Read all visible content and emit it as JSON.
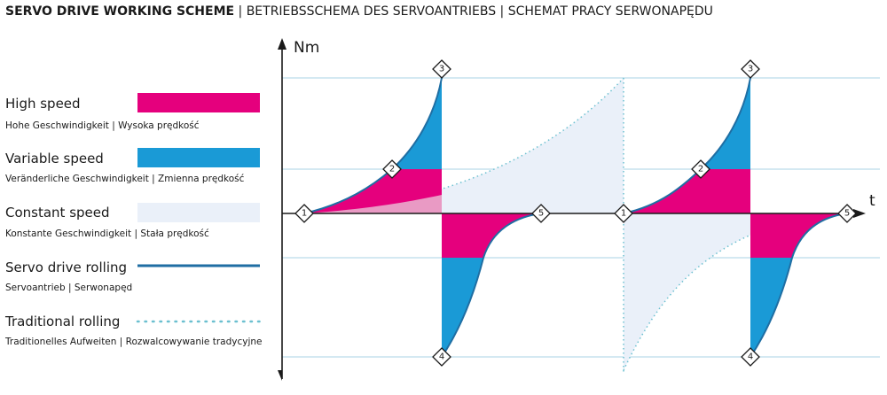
{
  "header": {
    "title_bold": "SERVO DRIVE WORKING SCHEME",
    "title_rest": " | BETRIEBSSCHEMA DES SERVOANTRIEBS | SCHEMAT PRACY SERWONAPĘDU"
  },
  "axis": {
    "y_label": "Nm",
    "x_label": "t"
  },
  "legend": [
    {
      "label": "High speed",
      "sublabel": "Hohe Geschwindigkeit | Wysoka prędkość"
    },
    {
      "label": "Variable speed",
      "sublabel": "Veränderliche Geschwindigkeit | Zmienna prędkość"
    },
    {
      "label": "Constant speed",
      "sublabel": "Konstante Geschwindigkeit | Stała prędkość"
    },
    {
      "label": "Servo drive rolling",
      "sublabel": "Servoantrieb | Serwonapęd"
    },
    {
      "label": "Traditional rolling",
      "sublabel": "Traditionelles Aufweiten | Rozwalcowywanie tradycyjne"
    }
  ],
  "nodes": [
    {
      "label": "1"
    },
    {
      "label": "2"
    },
    {
      "label": "3"
    },
    {
      "label": "4"
    },
    {
      "label": "5"
    },
    {
      "label": "1"
    },
    {
      "label": "2"
    },
    {
      "label": "3"
    },
    {
      "label": "4"
    },
    {
      "label": "5"
    }
  ]
}
